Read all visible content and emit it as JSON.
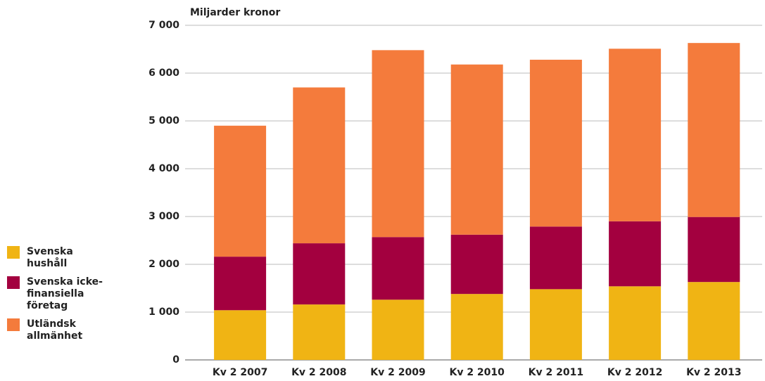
{
  "chart_data": {
    "type": "stacked_bar",
    "y_label": "Miljarder kronor",
    "categories": [
      "Kv 2 2007",
      "Kv 2 2008",
      "Kv 2 2009",
      "Kv 2 2010",
      "Kv 2 2011",
      "Kv 2 2012",
      "Kv 2 2013"
    ],
    "series": [
      {
        "name": "Svenska hushåll",
        "color": "#f0b414",
        "values": [
          1040,
          1160,
          1260,
          1380,
          1480,
          1540,
          1630
        ]
      },
      {
        "name": "Svenska icke-finansiella företag",
        "color": "#a3003f",
        "values": [
          1120,
          1280,
          1310,
          1240,
          1310,
          1360,
          1360
        ]
      },
      {
        "name": "Utländsk allmänhet",
        "color": "#f47b3c",
        "values": [
          2740,
          3260,
          3910,
          3560,
          3490,
          3610,
          3640
        ]
      }
    ],
    "ylim": [
      0,
      7000
    ],
    "yticks": [
      0,
      {
        "value": 1000,
        "label": "1 000"
      },
      {
        "value": 2000,
        "label": "2 000"
      },
      {
        "value": 3000,
        "label": "3 000"
      },
      {
        "value": 4000,
        "label": "4 000"
      },
      {
        "value": 5000,
        "label": "5 000"
      },
      {
        "value": 6000,
        "label": "6 000"
      },
      {
        "value": 7000,
        "label": "7 000"
      }
    ],
    "grid": true
  }
}
